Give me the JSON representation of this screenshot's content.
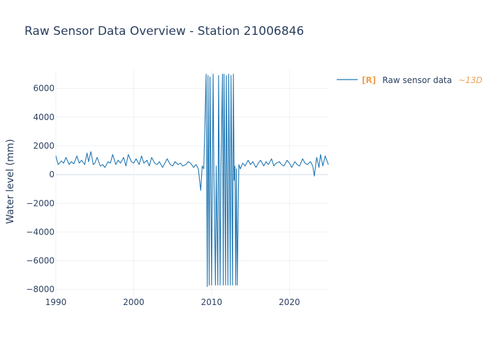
{
  "chart_data": {
    "type": "line",
    "title": "Raw Sensor Data Overview - Station 21006846",
    "xlabel": "",
    "ylabel": "Water level (mm)",
    "xlim": [
      1990,
      2025
    ],
    "ylim": [
      -8500,
      7300
    ],
    "x_ticks": [
      1990,
      2000,
      2010,
      2020
    ],
    "x_tick_labels": [
      "1990",
      "2000",
      "2010",
      "2020"
    ],
    "y_ticks": [
      -8000,
      -6000,
      -4000,
      -2000,
      0,
      2000,
      4000,
      6000
    ],
    "y_tick_labels": [
      "−8000",
      "−6000",
      "−4000",
      "−2000",
      "0",
      "2000",
      "4000",
      "6000"
    ],
    "grid": true,
    "legend_position": "top-right",
    "series": [
      {
        "name": "Raw sensor data",
        "legend_tag": "[R]",
        "legend_period": "~13D",
        "color": "#1f77b4",
        "x": [
          1990.0,
          1990.3,
          1990.7,
          1991.0,
          1991.3,
          1991.7,
          1992.0,
          1992.3,
          1992.7,
          1993.0,
          1993.3,
          1993.7,
          1994.0,
          1994.2,
          1994.5,
          1994.8,
          1995.0,
          1995.3,
          1995.7,
          1996.0,
          1996.3,
          1996.7,
          1997.0,
          1997.3,
          1997.7,
          1998.0,
          1998.3,
          1998.7,
          1999.0,
          1999.3,
          1999.7,
          2000.0,
          2000.3,
          2000.7,
          2001.0,
          2001.3,
          2001.7,
          2002.0,
          2002.3,
          2002.7,
          2003.0,
          2003.3,
          2003.7,
          2004.0,
          2004.3,
          2004.7,
          2005.0,
          2005.3,
          2005.7,
          2006.0,
          2006.3,
          2006.7,
          2007.0,
          2007.3,
          2007.7,
          2008.0,
          2008.3,
          2008.6,
          2008.8,
          2009.0,
          2009.3,
          2009.45,
          2009.55,
          2009.7,
          2009.8,
          2009.9,
          2010.0,
          2010.2,
          2010.3,
          2010.5,
          2010.6,
          2010.8,
          2010.9,
          2011.1,
          2011.2,
          2011.4,
          2011.5,
          2011.6,
          2011.7,
          2011.8,
          2011.9,
          2012.0,
          2012.1,
          2012.2,
          2012.3,
          2012.4,
          2012.5,
          2012.6,
          2012.7,
          2012.8,
          2012.9,
          2013.0,
          2013.1,
          2013.2,
          2013.3,
          2013.5,
          2013.7,
          2014.0,
          2014.3,
          2014.7,
          2015.0,
          2015.3,
          2015.7,
          2016.0,
          2016.3,
          2016.7,
          2017.0,
          2017.3,
          2017.7,
          2018.0,
          2018.3,
          2018.7,
          2019.0,
          2019.3,
          2019.7,
          2020.0,
          2020.3,
          2020.7,
          2021.0,
          2021.3,
          2021.7,
          2022.0,
          2022.3,
          2022.7,
          2023.0,
          2023.2,
          2023.5,
          2023.8,
          2024.0,
          2024.3,
          2024.6,
          2025.0
        ],
        "y": [
          1300,
          700,
          950,
          800,
          1200,
          700,
          900,
          750,
          1300,
          800,
          1000,
          700,
          1500,
          900,
          1600,
          700,
          800,
          1200,
          600,
          700,
          500,
          900,
          800,
          1400,
          700,
          1000,
          800,
          1200,
          600,
          1400,
          900,
          800,
          1100,
          700,
          1300,
          800,
          1000,
          600,
          1200,
          800,
          700,
          900,
          500,
          800,
          1100,
          700,
          600,
          900,
          700,
          800,
          600,
          700,
          900,
          800,
          500,
          700,
          400,
          -1100,
          600,
          400,
          7000,
          -7800,
          6900,
          -7700,
          6800,
          500,
          -7700,
          7000,
          300,
          -7700,
          600,
          -7700,
          6900,
          -7700,
          400,
          7000,
          -7700,
          7000,
          500,
          -7700,
          6900,
          300,
          -7700,
          7000,
          500,
          -7700,
          6900,
          400,
          -7700,
          7000,
          -400,
          600,
          -7700,
          400,
          -7700,
          700,
          400,
          800,
          600,
          1000,
          700,
          900,
          500,
          800,
          1000,
          600,
          900,
          700,
          1100,
          600,
          800,
          900,
          700,
          600,
          1000,
          800,
          500,
          900,
          700,
          600,
          1100,
          800,
          700,
          900,
          600,
          -100,
          1200,
          500,
          1400,
          600,
          1300,
          700
        ]
      }
    ]
  }
}
